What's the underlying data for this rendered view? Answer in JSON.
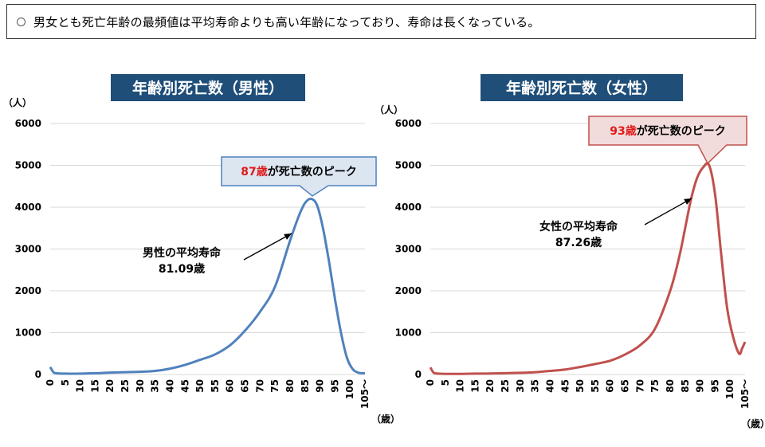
{
  "headline": "男女とも死亡年齢の最頻値は平均寿命よりも高い年齢になっており、寿命は長くなっている。",
  "colors": {
    "male": "#4f81bd",
    "female": "#c0504d",
    "title_bg": "#1f4e79",
    "peak_red": "#e01919"
  },
  "chart_data": [
    {
      "type": "line",
      "title": "年齢別死亡数（男性）",
      "ylabel": "（人）",
      "xlabel": "（歳）",
      "ylim": [
        0,
        6000
      ],
      "yticks": [
        0,
        1000,
        2000,
        3000,
        4000,
        5000,
        6000
      ],
      "xticks": [
        "0",
        "5",
        "10",
        "15",
        "20",
        "25",
        "30",
        "35",
        "40",
        "45",
        "50",
        "55",
        "60",
        "65",
        "70",
        "75",
        "80",
        "85",
        "90",
        "95",
        "100",
        "105～"
      ],
      "x": [
        0,
        1,
        2,
        5,
        10,
        15,
        20,
        25,
        30,
        35,
        40,
        45,
        50,
        55,
        60,
        65,
        70,
        75,
        80,
        83,
        85,
        87,
        89,
        91,
        93,
        95,
        97,
        99,
        101,
        103,
        105
      ],
      "values": [
        180,
        60,
        30,
        20,
        20,
        30,
        45,
        55,
        65,
        85,
        140,
        230,
        350,
        480,
        700,
        1050,
        1500,
        2100,
        3200,
        3800,
        4100,
        4200,
        4050,
        3500,
        2700,
        1800,
        1000,
        400,
        120,
        40,
        30
      ],
      "peak": {
        "value_label": "87歳",
        "suffix": "が死亡数のピーク"
      },
      "average": {
        "label": "男性の平均寿命",
        "value": "81.09歳"
      }
    },
    {
      "type": "line",
      "title": "年齢別死亡数（女性）",
      "ylabel": "（人）",
      "xlabel": "（歳）",
      "ylim": [
        0,
        6000
      ],
      "yticks": [
        0,
        1000,
        2000,
        3000,
        4000,
        5000,
        6000
      ],
      "xticks": [
        "0",
        "5",
        "10",
        "15",
        "20",
        "25",
        "30",
        "35",
        "40",
        "45",
        "50",
        "55",
        "60",
        "65",
        "70",
        "75",
        "80",
        "85",
        "90",
        "95",
        "100",
        "105～"
      ],
      "x": [
        0,
        1,
        2,
        5,
        10,
        15,
        20,
        25,
        30,
        35,
        40,
        45,
        50,
        55,
        60,
        65,
        70,
        75,
        80,
        83,
        85,
        87,
        89,
        91,
        93,
        95,
        97,
        99,
        101,
        103,
        104,
        105
      ],
      "values": [
        170,
        50,
        25,
        15,
        15,
        20,
        25,
        30,
        40,
        55,
        85,
        120,
        180,
        250,
        330,
        480,
        700,
        1100,
        2000,
        2800,
        3500,
        4200,
        4700,
        4950,
        5000,
        4300,
        2900,
        1600,
        900,
        500,
        620,
        780
      ],
      "peak": {
        "value_label": "93歳",
        "suffix": "が死亡数のピーク"
      },
      "average": {
        "label": "女性の平均寿命",
        "value": "87.26歳"
      }
    }
  ]
}
